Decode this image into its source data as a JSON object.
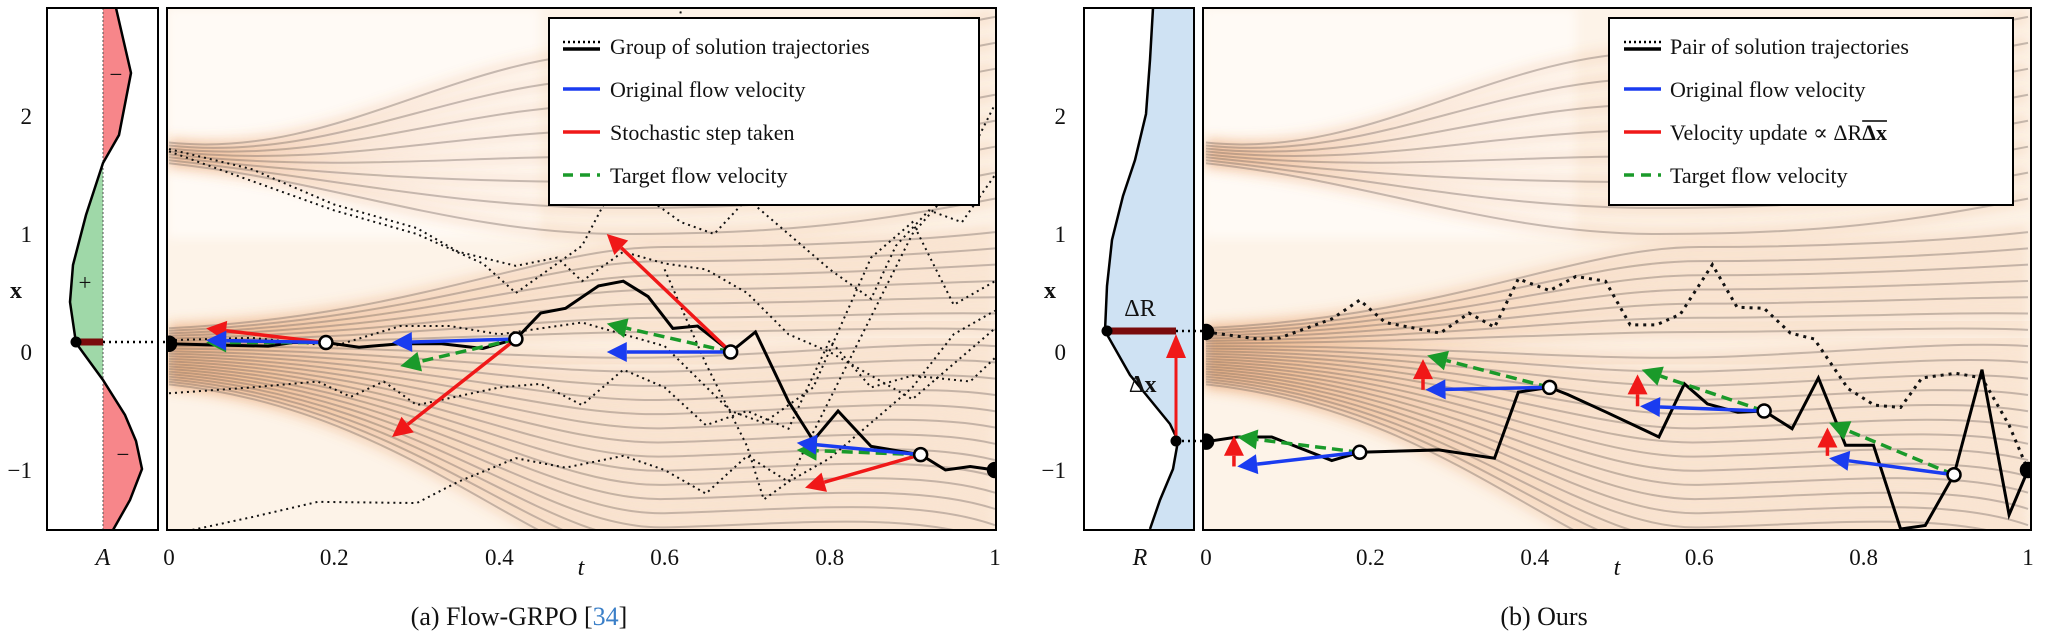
{
  "colors": {
    "blue": "#1a3cf0",
    "red": "#f01818",
    "green": "#1a9a2a",
    "dark_red": "#7a0c0c",
    "positive_fill": "#9fd8a8",
    "negative_fill": "#f7868a",
    "reward_fill": "#cfe2f3",
    "citation": "#3a7fc8"
  },
  "y_ticks": [
    "2",
    "1",
    "0",
    "−1"
  ],
  "y_tick_values": [
    2,
    1,
    0,
    -1
  ],
  "t_ticks": [
    "0",
    "0.2",
    "0.4",
    "0.6",
    "0.8",
    "1"
  ],
  "t_tick_values": [
    0,
    0.2,
    0.4,
    0.6,
    0.8,
    1
  ],
  "panel_a": {
    "caption_prefix": "(a) Flow-GRPO [",
    "caption_ref": "34",
    "caption_suffix": "]",
    "y_label": "x",
    "x_label": "t",
    "side_label": "A",
    "side_signs": [
      "−",
      "+",
      "−"
    ],
    "legend": [
      {
        "label": "Group of solution trajectories",
        "style": "dotted-solid"
      },
      {
        "label": "Original flow velocity",
        "style": "blue"
      },
      {
        "label": "Stochastic step taken",
        "style": "red"
      },
      {
        "label": "Target flow velocity",
        "style": "green-dashed"
      }
    ],
    "solid_trajectory": [
      [
        0,
        0.07
      ],
      [
        0.05,
        0.06
      ],
      [
        0.12,
        0.05
      ],
      [
        0.15,
        0.08
      ],
      [
        0.19,
        0.08
      ],
      [
        0.23,
        0.04
      ],
      [
        0.28,
        0.07
      ],
      [
        0.33,
        0.07
      ],
      [
        0.38,
        0.03
      ],
      [
        0.42,
        0.11
      ],
      [
        0.45,
        0.33
      ],
      [
        0.48,
        0.37
      ],
      [
        0.52,
        0.56
      ],
      [
        0.55,
        0.6
      ],
      [
        0.58,
        0.47
      ],
      [
        0.61,
        0.2
      ],
      [
        0.64,
        0.22
      ],
      [
        0.68,
        0.0
      ],
      [
        0.71,
        0.17
      ],
      [
        0.75,
        -0.42
      ],
      [
        0.78,
        -0.75
      ],
      [
        0.81,
        -0.5
      ],
      [
        0.85,
        -0.8
      ],
      [
        0.91,
        -0.87
      ],
      [
        0.94,
        -1.0
      ],
      [
        0.97,
        -0.97
      ],
      [
        1.0,
        -1.0
      ]
    ],
    "dotted_trajectories": [
      [
        [
          0,
          1.72
        ],
        [
          0.1,
          1.55
        ],
        [
          0.2,
          1.25
        ],
        [
          0.3,
          1.05
        ],
        [
          0.35,
          0.85
        ],
        [
          0.42,
          0.73
        ],
        [
          0.47,
          0.8
        ],
        [
          0.5,
          0.6
        ],
        [
          0.55,
          0.85
        ],
        [
          0.6,
          0.75
        ],
        [
          0.65,
          0.7
        ],
        [
          0.7,
          0.5
        ],
        [
          0.75,
          0.15
        ],
        [
          0.8,
          0.0
        ],
        [
          0.85,
          -0.2
        ],
        [
          0.9,
          -0.4
        ],
        [
          1.0,
          0.2
        ]
      ],
      [
        [
          0,
          1.7
        ],
        [
          0.1,
          1.45
        ],
        [
          0.2,
          1.2
        ],
        [
          0.3,
          1.0
        ],
        [
          0.38,
          0.75
        ],
        [
          0.42,
          0.5
        ],
        [
          0.47,
          0.75
        ],
        [
          0.5,
          0.9
        ],
        [
          0.53,
          1.3
        ],
        [
          0.56,
          1.7
        ],
        [
          0.6,
          2.2
        ],
        [
          0.62,
          2.9
        ]
      ],
      [
        [
          0,
          0.1
        ],
        [
          0.1,
          0.12
        ],
        [
          0.2,
          0.05
        ],
        [
          0.28,
          0.22
        ],
        [
          0.34,
          0.22
        ],
        [
          0.4,
          0.15
        ],
        [
          0.5,
          0.25
        ],
        [
          0.6,
          0.05
        ],
        [
          0.68,
          -0.5
        ],
        [
          0.72,
          -0.6
        ],
        [
          0.78,
          -0.3
        ],
        [
          0.85,
          0.8
        ],
        [
          0.9,
          1.1
        ],
        [
          0.95,
          0.4
        ],
        [
          1.0,
          0.6
        ]
      ],
      [
        [
          0,
          -0.35
        ],
        [
          0.1,
          -0.3
        ],
        [
          0.18,
          -0.25
        ],
        [
          0.22,
          -0.38
        ],
        [
          0.26,
          -0.25
        ],
        [
          0.3,
          -0.45
        ],
        [
          0.4,
          -0.3
        ],
        [
          0.45,
          -0.27
        ],
        [
          0.5,
          -0.45
        ],
        [
          0.55,
          -0.15
        ],
        [
          0.6,
          -0.3
        ],
        [
          0.65,
          -0.62
        ],
        [
          0.7,
          -0.5
        ],
        [
          0.75,
          -0.65
        ],
        [
          0.8,
          0.1
        ],
        [
          0.85,
          -0.3
        ],
        [
          0.9,
          -0.2
        ],
        [
          0.97,
          -0.25
        ],
        [
          1.0,
          -0.05
        ]
      ],
      [
        [
          0,
          -1.55
        ],
        [
          0.1,
          -1.4
        ],
        [
          0.18,
          -1.27
        ],
        [
          0.3,
          -1.28
        ],
        [
          0.35,
          -1.1
        ],
        [
          0.42,
          -0.9
        ],
        [
          0.48,
          -0.98
        ],
        [
          0.55,
          -0.88
        ],
        [
          0.6,
          -1.0
        ],
        [
          0.65,
          -1.2
        ],
        [
          0.7,
          -0.88
        ],
        [
          0.75,
          -1.1
        ],
        [
          0.8,
          -0.9
        ],
        [
          0.85,
          -0.6
        ],
        [
          0.9,
          -0.3
        ],
        [
          0.95,
          0.15
        ],
        [
          1.0,
          0.35
        ]
      ],
      [
        [
          0.6,
          0.7
        ],
        [
          0.65,
          -0.1
        ],
        [
          0.7,
          -0.8
        ],
        [
          0.72,
          -1.25
        ],
        [
          0.75,
          -1.1
        ],
        [
          0.8,
          -0.4
        ],
        [
          0.85,
          0.3
        ],
        [
          0.9,
          1.0
        ],
        [
          0.95,
          1.4
        ],
        [
          1.0,
          2.1
        ]
      ],
      [
        [
          0.58,
          1.3
        ],
        [
          0.62,
          1.1
        ],
        [
          0.66,
          1.0
        ],
        [
          0.7,
          1.3
        ],
        [
          0.75,
          1.0
        ],
        [
          0.8,
          0.7
        ],
        [
          0.85,
          0.45
        ],
        [
          0.88,
          0.9
        ],
        [
          0.92,
          1.2
        ],
        [
          0.96,
          1.1
        ],
        [
          1.0,
          1.5
        ]
      ]
    ],
    "nodes": [
      [
        0.19,
        0.08
      ],
      [
        0.42,
        0.11
      ],
      [
        0.68,
        0.0
      ],
      [
        0.91,
        -0.87
      ]
    ],
    "endpoints": [
      [
        0,
        0.07
      ],
      [
        1.0,
        -1.0
      ]
    ],
    "arrows": [
      {
        "kind": "red",
        "from": [
          0.19,
          0.08
        ],
        "to": [
          0.045,
          0.2
        ]
      },
      {
        "kind": "green",
        "from": [
          0.19,
          0.08
        ],
        "to": [
          0.045,
          0.08
        ]
      },
      {
        "kind": "blue",
        "from": [
          0.19,
          0.08
        ],
        "to": [
          0.045,
          0.1
        ]
      },
      {
        "kind": "red",
        "from": [
          0.42,
          0.11
        ],
        "to": [
          0.27,
          -0.72
        ]
      },
      {
        "kind": "green",
        "from": [
          0.42,
          0.11
        ],
        "to": [
          0.28,
          -0.12
        ]
      },
      {
        "kind": "blue",
        "from": [
          0.42,
          0.11
        ],
        "to": [
          0.27,
          0.08
        ]
      },
      {
        "kind": "red",
        "from": [
          0.68,
          0.0
        ],
        "to": [
          0.53,
          1.0
        ]
      },
      {
        "kind": "green",
        "from": [
          0.68,
          0.0
        ],
        "to": [
          0.53,
          0.24
        ]
      },
      {
        "kind": "blue",
        "from": [
          0.68,
          0.0
        ],
        "to": [
          0.53,
          0.0
        ]
      },
      {
        "kind": "red",
        "from": [
          0.91,
          -0.87
        ],
        "to": [
          0.77,
          -1.15
        ]
      },
      {
        "kind": "green",
        "from": [
          0.91,
          -0.87
        ],
        "to": [
          0.76,
          -0.83
        ]
      },
      {
        "kind": "blue",
        "from": [
          0.91,
          -0.87
        ],
        "to": [
          0.76,
          -0.77
        ]
      }
    ]
  },
  "panel_b": {
    "caption": "(b) Ours",
    "y_label": "x",
    "x_label": "t",
    "side_label": "R",
    "delta_r_label": "ΔR",
    "delta_x_label": "Δx",
    "legend": [
      {
        "label": "Pair of solution trajectories",
        "style": "dotted-solid"
      },
      {
        "label": "Original flow velocity",
        "style": "blue"
      },
      {
        "label": "Velocity update ∝ ΔR",
        "label_overlined": "Δx",
        "style": "red"
      },
      {
        "label": "Target flow velocity",
        "style": "green-dashed"
      }
    ],
    "solid_trajectory": [
      [
        0,
        -0.76
      ],
      [
        0.038,
        -0.72
      ],
      [
        0.08,
        -0.72
      ],
      [
        0.153,
        -0.92
      ],
      [
        0.187,
        -0.85
      ],
      [
        0.283,
        -0.83
      ],
      [
        0.351,
        -0.9
      ],
      [
        0.38,
        -0.34
      ],
      [
        0.418,
        -0.3
      ],
      [
        0.44,
        -0.36
      ],
      [
        0.487,
        -0.51
      ],
      [
        0.551,
        -0.72
      ],
      [
        0.582,
        -0.27
      ],
      [
        0.61,
        -0.44
      ],
      [
        0.647,
        -0.51
      ],
      [
        0.679,
        -0.5
      ],
      [
        0.713,
        -0.65
      ],
      [
        0.745,
        -0.22
      ],
      [
        0.778,
        -0.79
      ],
      [
        0.812,
        -0.79
      ],
      [
        0.845,
        -1.5
      ],
      [
        0.875,
        -1.47
      ],
      [
        0.91,
        -1.04
      ],
      [
        0.944,
        -0.15
      ],
      [
        0.977,
        -1.38
      ],
      [
        1.0,
        -1.0
      ]
    ],
    "dotted_trajectory": [
      [
        0,
        0.17
      ],
      [
        0.063,
        0.11
      ],
      [
        0.09,
        0.12
      ],
      [
        0.153,
        0.28
      ],
      [
        0.187,
        0.44
      ],
      [
        0.218,
        0.25
      ],
      [
        0.285,
        0.16
      ],
      [
        0.32,
        0.33
      ],
      [
        0.351,
        0.21
      ],
      [
        0.38,
        0.62
      ],
      [
        0.418,
        0.52
      ],
      [
        0.45,
        0.64
      ],
      [
        0.486,
        0.6
      ],
      [
        0.516,
        0.23
      ],
      [
        0.548,
        0.23
      ],
      [
        0.577,
        0.32
      ],
      [
        0.616,
        0.74
      ],
      [
        0.646,
        0.38
      ],
      [
        0.679,
        0.37
      ],
      [
        0.711,
        0.16
      ],
      [
        0.74,
        0.11
      ],
      [
        0.781,
        -0.31
      ],
      [
        0.813,
        -0.45
      ],
      [
        0.845,
        -0.47
      ],
      [
        0.871,
        -0.22
      ],
      [
        0.912,
        -0.18
      ],
      [
        0.944,
        -0.22
      ],
      [
        0.977,
        -0.62
      ],
      [
        1.0,
        -1.0
      ]
    ],
    "nodes": [
      [
        0.187,
        -0.85
      ],
      [
        0.418,
        -0.3
      ],
      [
        0.679,
        -0.5
      ],
      [
        0.91,
        -1.04
      ]
    ],
    "endpoints": [
      [
        0,
        0.17
      ],
      [
        0,
        -0.76
      ],
      [
        1.0,
        -1.0
      ]
    ],
    "arrows": [
      {
        "kind": "green",
        "from": [
          0.187,
          -0.85
        ],
        "to": [
          0.038,
          -0.72
        ]
      },
      {
        "kind": "blue",
        "from": [
          0.187,
          -0.85
        ],
        "to": [
          0.038,
          -0.97
        ]
      },
      {
        "kind": "red",
        "from": [
          0.034,
          -0.97
        ],
        "to": [
          0.034,
          -0.71
        ]
      },
      {
        "kind": "green",
        "from": [
          0.418,
          -0.3
        ],
        "to": [
          0.269,
          -0.03
        ]
      },
      {
        "kind": "blue",
        "from": [
          0.418,
          -0.3
        ],
        "to": [
          0.267,
          -0.32
        ]
      },
      {
        "kind": "red",
        "from": [
          0.264,
          -0.32
        ],
        "to": [
          0.264,
          -0.06
        ]
      },
      {
        "kind": "green",
        "from": [
          0.679,
          -0.5
        ],
        "to": [
          0.53,
          -0.15
        ]
      },
      {
        "kind": "blue",
        "from": [
          0.679,
          -0.5
        ],
        "to": [
          0.528,
          -0.46
        ]
      },
      {
        "kind": "red",
        "from": [
          0.525,
          -0.46
        ],
        "to": [
          0.525,
          -0.19
        ]
      },
      {
        "kind": "green",
        "from": [
          0.91,
          -1.04
        ],
        "to": [
          0.758,
          -0.6
        ]
      },
      {
        "kind": "blue",
        "from": [
          0.91,
          -1.04
        ],
        "to": [
          0.758,
          -0.9
        ]
      },
      {
        "kind": "red",
        "from": [
          0.756,
          -0.88
        ],
        "to": [
          0.756,
          -0.64
        ]
      }
    ]
  }
}
